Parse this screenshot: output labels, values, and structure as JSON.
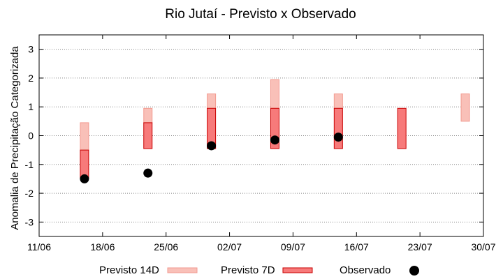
{
  "chart_data": {
    "type": "bar",
    "title": "Rio Jutaí - Previsto x Observado",
    "ylabel": "Anomalia de Precipitação Categorizada",
    "xlabel": "",
    "ylim": [
      -3.5,
      3.5
    ],
    "yticks": [
      -3,
      -2,
      -1,
      0,
      1,
      2,
      3
    ],
    "xticks": [
      "11/06",
      "18/06",
      "25/06",
      "02/07",
      "09/07",
      "16/07",
      "23/07",
      "30/07"
    ],
    "grid": true,
    "legend_position": "bottom",
    "colors": {
      "previsto14d_fill": "#f9c0b8",
      "previsto14d_stroke": "#f29a90",
      "previsto7d_fill": "#f77a7a",
      "previsto7d_stroke": "#c80000",
      "observado": "#000000",
      "grid": "#888888"
    },
    "series": [
      {
        "name": "Previsto 14D",
        "kind": "range",
        "points": [
          {
            "x": "16/06",
            "low": -0.5,
            "high": 0.45
          },
          {
            "x": "23/06",
            "low": 0.45,
            "high": 0.95
          },
          {
            "x": "30/06",
            "low": 0.95,
            "high": 1.45
          },
          {
            "x": "07/07",
            "low": 0.95,
            "high": 1.95
          },
          {
            "x": "14/07",
            "low": 0.95,
            "high": 1.45
          },
          {
            "x": "28/07",
            "low": 0.5,
            "high": 1.45
          }
        ]
      },
      {
        "name": "Previsto 7D",
        "kind": "range",
        "points": [
          {
            "x": "16/06",
            "low": -1.5,
            "high": -0.5
          },
          {
            "x": "23/06",
            "low": -0.45,
            "high": 0.45
          },
          {
            "x": "30/06",
            "low": -0.45,
            "high": 0.95
          },
          {
            "x": "07/07",
            "low": -0.45,
            "high": 0.95
          },
          {
            "x": "14/07",
            "low": -0.45,
            "high": 0.95
          },
          {
            "x": "21/07",
            "low": -0.45,
            "high": 0.95
          }
        ]
      },
      {
        "name": "Observado",
        "kind": "point",
        "points": [
          {
            "x": "16/06",
            "y": -1.5
          },
          {
            "x": "23/06",
            "y": -1.3
          },
          {
            "x": "30/06",
            "y": -0.35
          },
          {
            "x": "07/07",
            "y": -0.15
          },
          {
            "x": "14/07",
            "y": -0.05
          }
        ]
      }
    ]
  }
}
